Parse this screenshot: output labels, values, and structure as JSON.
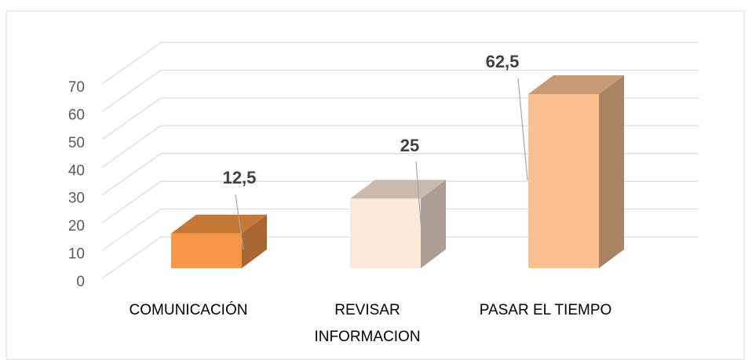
{
  "chart_data": {
    "type": "bar3d",
    "categories": [
      "COMUNICACIÓN",
      "REVISAR INFORMACION",
      "PASAR EL TIEMPO"
    ],
    "values": [
      12.5,
      25,
      62.5
    ],
    "value_labels": [
      "12,5",
      "25",
      "62,5"
    ],
    "colors": [
      "#f79646",
      "#fde9d9",
      "#fac090"
    ],
    "ylim": [
      0,
      70
    ],
    "yticks": [
      0,
      10,
      20,
      30,
      40,
      50,
      60,
      70
    ],
    "grid": true
  }
}
